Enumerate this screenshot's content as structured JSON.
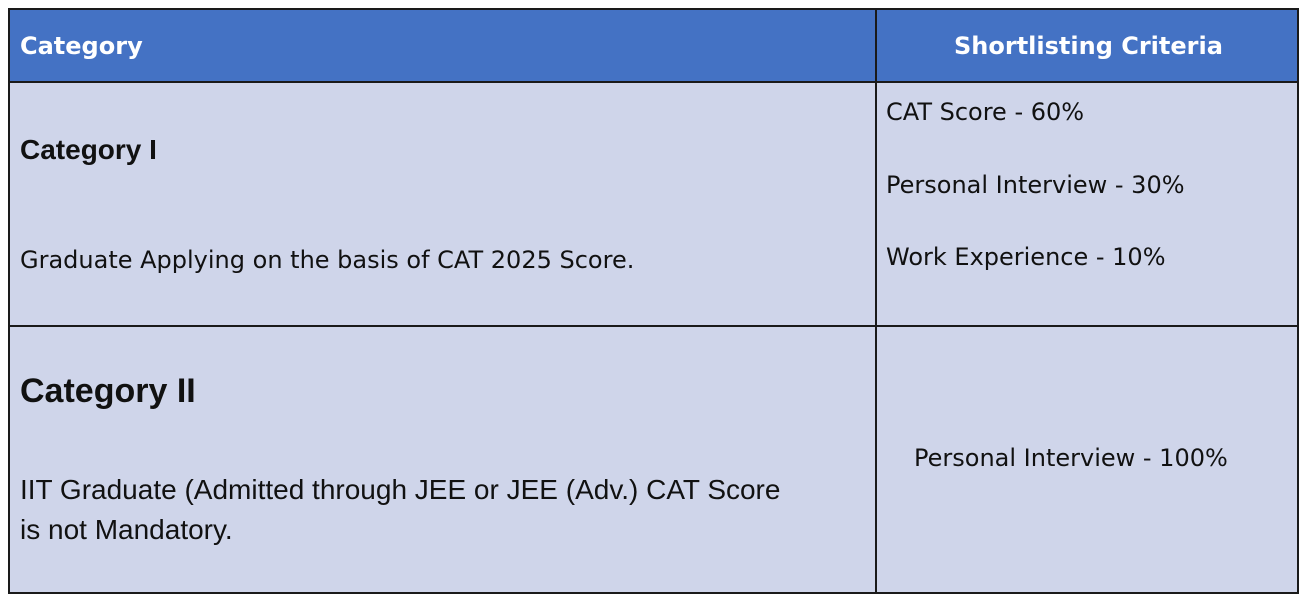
{
  "header": {
    "category": "Category",
    "criteria": "Shortlisting Criteria"
  },
  "rows": [
    {
      "title": "Category I",
      "description": "Graduate Applying on the basis of CAT 2025 Score.",
      "criteria": [
        "CAT Score - 60%",
        "Personal Interview - 30%",
        "Work Experience - 10%"
      ]
    },
    {
      "title": "Category II",
      "description_lines": [
        "IIT Graduate (Admitted through JEE or JEE (Adv.) CAT Score",
        "is not Mandatory."
      ],
      "criteria": [
        "Personal Interview - 100%"
      ]
    }
  ],
  "colors": {
    "header_bg": "#4472c4",
    "body_bg": "#cfd5ea",
    "border": "#1a1a1a"
  }
}
